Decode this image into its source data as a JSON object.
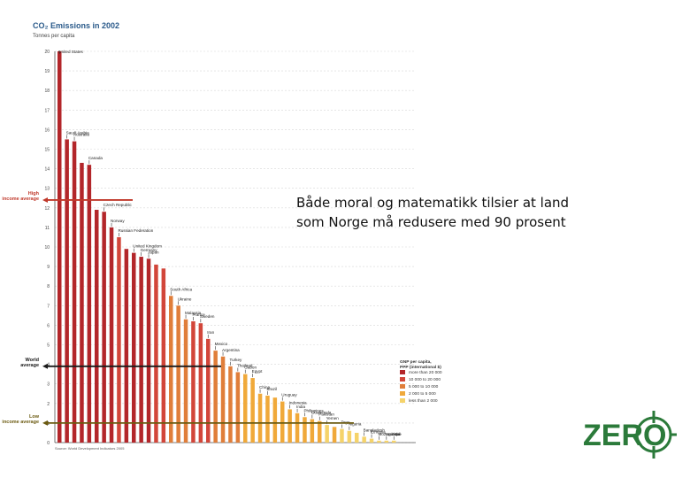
{
  "slide_text": {
    "line1": "Både moral og matematikk tilsier at land",
    "line2": "som Norge må redusere med 90 prosent"
  },
  "logo": {
    "text": "ZERO",
    "color": "#2b7a3a",
    "icon": "zero-crosshair-logo"
  },
  "colors": {
    "more_than_20000": "#b3262a",
    "10000_to_20000": "#d2463a",
    "5000_to_10000": "#e07e3a",
    "2000_to_5000": "#f0a93a",
    "less_than_2000": "#f5d36a",
    "high_line": "#c0392b",
    "world_line": "#1a1a1a",
    "low_line": "#6b5a10"
  },
  "chart_data": {
    "type": "bar",
    "title": "CO₂ Emissions in 2002",
    "ylabel": "Tonnes per capita",
    "ylim": [
      0,
      20
    ],
    "yticks": [
      0,
      1,
      2,
      3,
      4,
      5,
      6,
      7,
      8,
      9,
      10,
      11,
      12,
      13,
      14,
      15,
      16,
      17,
      18,
      19,
      20
    ],
    "bars": [
      {
        "value": 20.0,
        "cls": 0,
        "label": "United States"
      },
      {
        "value": 15.5,
        "cls": 0,
        "label": "Saudi Arabia"
      },
      {
        "value": 15.4,
        "cls": 0,
        "label": "Australia"
      },
      {
        "value": 14.3,
        "cls": 0
      },
      {
        "value": 14.2,
        "cls": 0,
        "label": "Canada"
      },
      {
        "value": 11.9,
        "cls": 0
      },
      {
        "value": 11.8,
        "cls": 0,
        "label": "Czech Republic"
      },
      {
        "value": 11.0,
        "cls": 0,
        "label": "Norway"
      },
      {
        "value": 10.5,
        "cls": 1,
        "label": "Russian Federation"
      },
      {
        "value": 9.9,
        "cls": 0
      },
      {
        "value": 9.7,
        "cls": 0,
        "label": "United Kingdom"
      },
      {
        "value": 9.5,
        "cls": 0,
        "label": "Germany"
      },
      {
        "value": 9.4,
        "cls": 0,
        "label": "Japan"
      },
      {
        "value": 9.1,
        "cls": 1
      },
      {
        "value": 8.9,
        "cls": 1
      },
      {
        "value": 7.5,
        "cls": 2,
        "label": "South Africa"
      },
      {
        "value": 7.0,
        "cls": 2,
        "label": "Ukraine"
      },
      {
        "value": 6.3,
        "cls": 2,
        "label": "Malaysia"
      },
      {
        "value": 6.2,
        "cls": 1,
        "label": "France"
      },
      {
        "value": 6.1,
        "cls": 1,
        "label": "Sweden"
      },
      {
        "value": 5.3,
        "cls": 1,
        "label": "Iran"
      },
      {
        "value": 4.7,
        "cls": 2,
        "label": "Mexico"
      },
      {
        "value": 4.4,
        "cls": 2,
        "label": "Argentina"
      },
      {
        "value": 3.9,
        "cls": 2,
        "label": "Turkey"
      },
      {
        "value": 3.6,
        "cls": 2,
        "label": "Thailand"
      },
      {
        "value": 3.5,
        "cls": 3,
        "label": "Gabon"
      },
      {
        "value": 3.3,
        "cls": 3,
        "label": "Egypt"
      },
      {
        "value": 2.5,
        "cls": 3,
        "label": "China"
      },
      {
        "value": 2.4,
        "cls": 3,
        "label": "Brazil"
      },
      {
        "value": 2.3,
        "cls": 3
      },
      {
        "value": 2.1,
        "cls": 3,
        "label": "Uruguay"
      },
      {
        "value": 1.7,
        "cls": 3,
        "label": "Indonesia"
      },
      {
        "value": 1.5,
        "cls": 3,
        "label": "India"
      },
      {
        "value": 1.3,
        "cls": 3,
        "label": "Philippines"
      },
      {
        "value": 1.2,
        "cls": 3,
        "label": "Guatemala"
      },
      {
        "value": 1.1,
        "cls": 3,
        "label": "Pakistan"
      },
      {
        "value": 0.9,
        "cls": 4,
        "label": "Yemen"
      },
      {
        "value": 0.8,
        "cls": 3
      },
      {
        "value": 0.7,
        "cls": 4,
        "label": "Togo"
      },
      {
        "value": 0.6,
        "cls": 4,
        "label": "Nigeria"
      },
      {
        "value": 0.5,
        "cls": 4
      },
      {
        "value": 0.3,
        "cls": 4,
        "label": "Bangladesh"
      },
      {
        "value": 0.2,
        "cls": 4,
        "label": "Ethiopia"
      },
      {
        "value": 0.1,
        "cls": 4,
        "label": "Mozambique"
      },
      {
        "value": 0.1,
        "cls": 4,
        "label": "Uganda"
      },
      {
        "value": 0.1,
        "cls": 4,
        "label": "Mali"
      }
    ],
    "reference_lines": [
      {
        "label": "High income average",
        "value": 12.4
      },
      {
        "label": "World average",
        "value": 3.9
      },
      {
        "label": "Low income average",
        "value": 1.0
      }
    ],
    "legend": {
      "title": "GNP per capita, PPP (international $)",
      "entries": [
        "more than 20 000",
        "10 000 to 20 000",
        "5 000 to 10 000",
        "2 000 to 5 000",
        "less than 2 000"
      ]
    },
    "source": "Source: World Development Indicators 2005"
  }
}
